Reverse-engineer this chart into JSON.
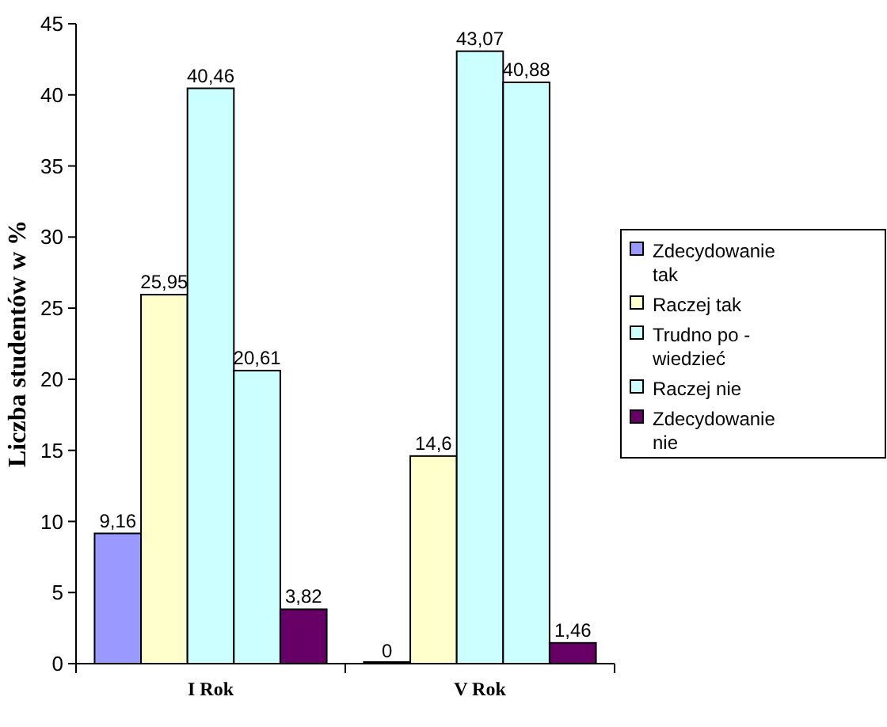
{
  "chart_data": {
    "type": "bar",
    "ylabel": "Liczba studentów w %",
    "categories": [
      "I Rok",
      "V Rok"
    ],
    "series": [
      {
        "name": "Zdecydowanie tak",
        "color": "#9999ff",
        "values": [
          9.16,
          0
        ],
        "value_labels": [
          "9,16",
          "0"
        ]
      },
      {
        "name": "Raczej tak",
        "color": "#ffffcc",
        "values": [
          25.95,
          14.6
        ],
        "value_labels": [
          "25,95",
          "14,6"
        ]
      },
      {
        "name": "Trudno po - wiedzieć",
        "color": "#ccffff",
        "values": [
          40.46,
          43.07
        ],
        "value_labels": [
          "40,46",
          "43,07"
        ]
      },
      {
        "name": "Raczej nie",
        "color": "#ccffff",
        "values": [
          20.61,
          40.88
        ],
        "value_labels": [
          "20,61",
          "40,88"
        ]
      },
      {
        "name": "Zdecydowanie nie",
        "color": "#660066",
        "values": [
          3.82,
          1.46
        ],
        "value_labels": [
          "3,82",
          "1,46"
        ]
      }
    ],
    "ylim": [
      0,
      45
    ],
    "yticks": [
      0,
      5,
      10,
      15,
      20,
      25,
      30,
      35,
      40,
      45
    ],
    "legend": "right"
  }
}
